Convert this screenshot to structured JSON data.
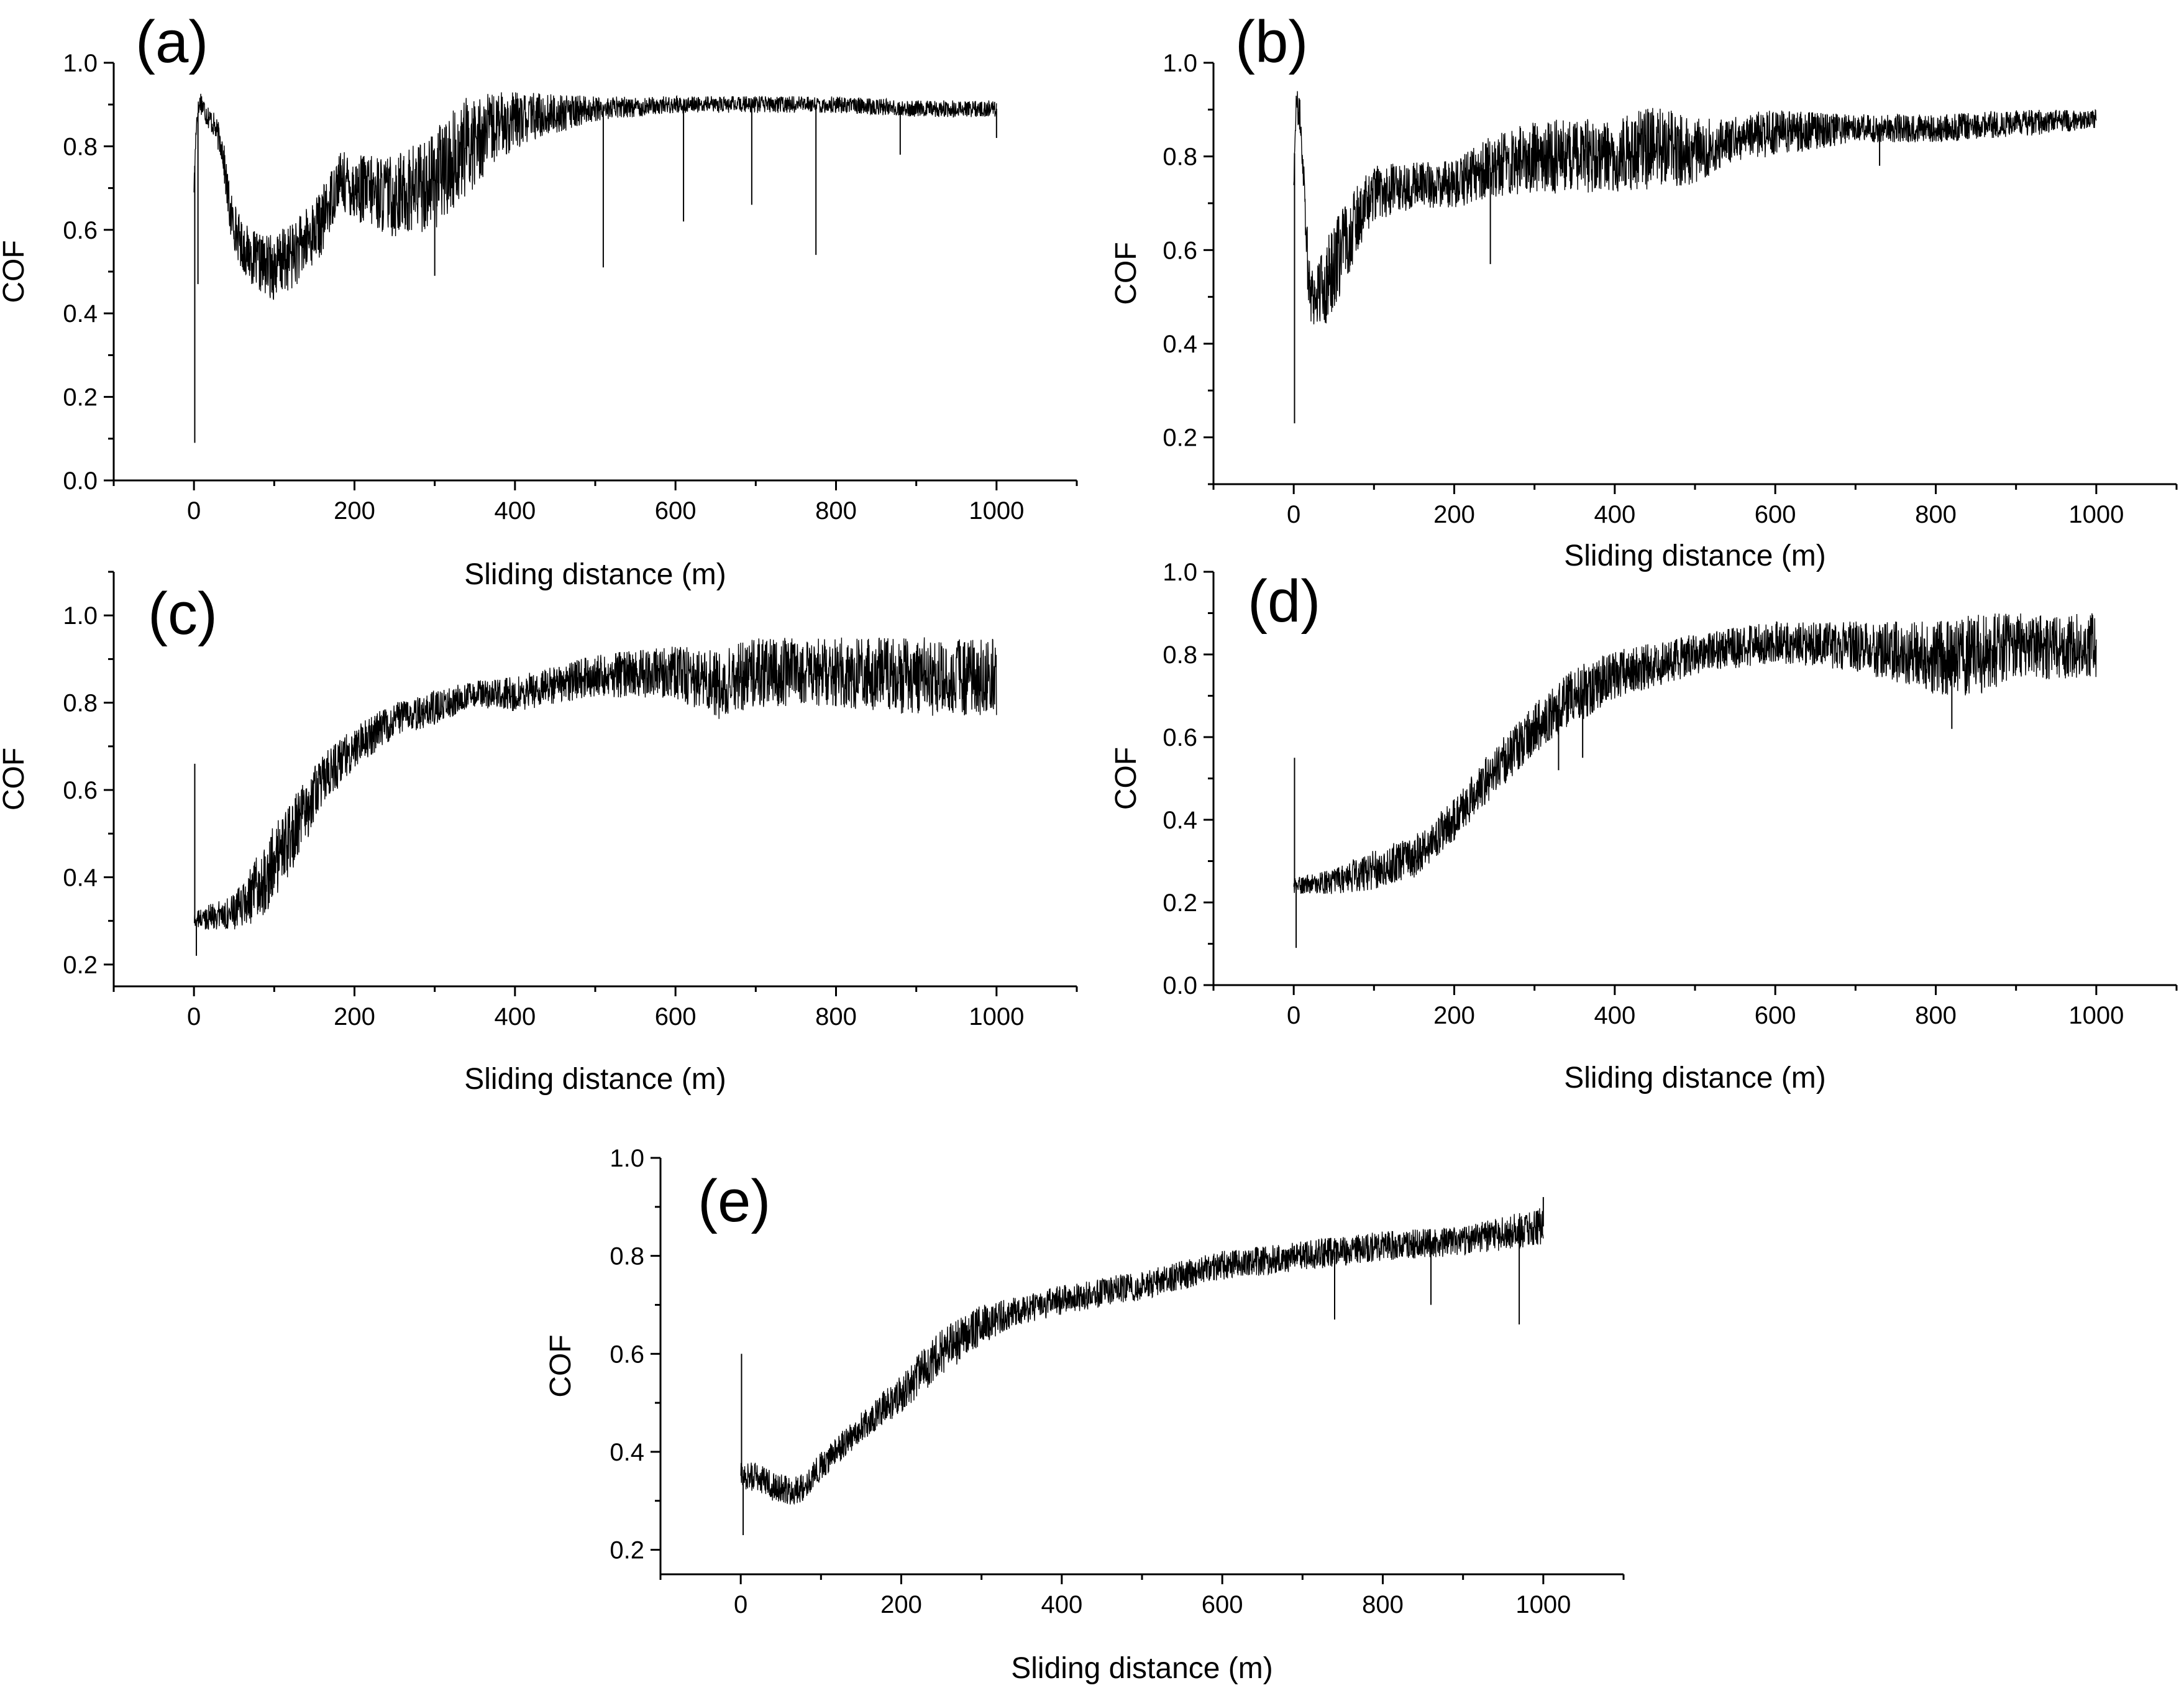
{
  "chart_data": [
    {
      "panel": "(a)",
      "type": "line",
      "xlabel": "Sliding distance (m)",
      "ylabel": "COF",
      "xlim": [
        -100,
        1100
      ],
      "ylim": [
        0.0,
        1.0
      ],
      "xticks": [
        0,
        200,
        400,
        600,
        800,
        1000
      ],
      "yticks": [
        0.0,
        0.2,
        0.4,
        0.6,
        0.8,
        1.0
      ],
      "ytick_labels": [
        "0.0",
        "0.2",
        "0.4",
        "0.6",
        "0.8",
        "1.0"
      ],
      "series": [
        {
          "name": "COF",
          "x": [
            0,
            3,
            8,
            15,
            25,
            35,
            45,
            60,
            80,
            100,
            130,
            160,
            180,
            200,
            250,
            300,
            340,
            380,
            420,
            500,
            600,
            700,
            800,
            900,
            1000
          ],
          "y": [
            0.7,
            0.86,
            0.91,
            0.88,
            0.85,
            0.8,
            0.64,
            0.56,
            0.52,
            0.51,
            0.55,
            0.62,
            0.72,
            0.7,
            0.68,
            0.72,
            0.8,
            0.85,
            0.87,
            0.89,
            0.9,
            0.9,
            0.9,
            0.89,
            0.89
          ],
          "band": [
            0.02,
            0.03,
            0.03,
            0.03,
            0.03,
            0.04,
            0.06,
            0.06,
            0.07,
            0.08,
            0.08,
            0.08,
            0.07,
            0.08,
            0.1,
            0.12,
            0.12,
            0.08,
            0.06,
            0.03,
            0.02,
            0.02,
            0.02,
            0.02,
            0.02
          ],
          "spikes": [
            [
              1,
              0.09
            ],
            [
              5,
              0.47
            ],
            [
              300,
              0.49
            ],
            [
              510,
              0.51
            ],
            [
              610,
              0.62
            ],
            [
              695,
              0.66
            ],
            [
              775,
              0.54
            ],
            [
              880,
              0.78
            ],
            [
              1000,
              0.82
            ]
          ]
        }
      ]
    },
    {
      "panel": "(b)",
      "type": "line",
      "xlabel": "Sliding distance (m)",
      "ylabel": "COF",
      "xlim": [
        -100,
        1100
      ],
      "ylim": [
        0.1,
        1.0
      ],
      "xticks": [
        0,
        200,
        400,
        600,
        800,
        1000
      ],
      "yticks": [
        0.2,
        0.4,
        0.6,
        0.8,
        1.0
      ],
      "ytick_labels": [
        "0.2",
        "0.4",
        "0.6",
        "0.8",
        "1.0"
      ],
      "series": [
        {
          "name": "COF",
          "x": [
            0,
            3,
            8,
            13,
            18,
            25,
            40,
            60,
            80,
            100,
            150,
            200,
            250,
            300,
            400,
            450,
            500,
            550,
            600,
            700,
            800,
            900,
            1000
          ],
          "y": [
            0.75,
            0.92,
            0.88,
            0.75,
            0.55,
            0.5,
            0.53,
            0.6,
            0.67,
            0.72,
            0.74,
            0.74,
            0.78,
            0.8,
            0.8,
            0.82,
            0.81,
            0.84,
            0.85,
            0.86,
            0.86,
            0.87,
            0.88
          ],
          "band": [
            0.03,
            0.03,
            0.04,
            0.05,
            0.08,
            0.08,
            0.09,
            0.09,
            0.07,
            0.06,
            0.05,
            0.05,
            0.07,
            0.08,
            0.08,
            0.09,
            0.07,
            0.05,
            0.05,
            0.03,
            0.03,
            0.03,
            0.02
          ],
          "spikes": [
            [
              1,
              0.23
            ],
            [
              245,
              0.57
            ],
            [
              730,
              0.78
            ]
          ]
        }
      ]
    },
    {
      "panel": "(c)",
      "type": "line",
      "xlabel": "Sliding distance (m)",
      "ylabel": "COF",
      "xlim": [
        -100,
        1100
      ],
      "ylim": [
        0.15,
        1.1
      ],
      "xticks": [
        0,
        200,
        400,
        600,
        800,
        1000
      ],
      "yticks": [
        0.2,
        0.4,
        0.6,
        0.8,
        1.0
      ],
      "ytick_labels": [
        "0.2",
        "0.4",
        "0.6",
        "0.8",
        "1.0"
      ],
      "series": [
        {
          "name": "COF",
          "x": [
            0,
            20,
            50,
            70,
            100,
            130,
            160,
            200,
            250,
            300,
            350,
            400,
            500,
            600,
            650,
            700,
            800,
            900,
            1000
          ],
          "y": [
            0.3,
            0.31,
            0.32,
            0.35,
            0.43,
            0.52,
            0.62,
            0.7,
            0.76,
            0.79,
            0.82,
            0.82,
            0.86,
            0.87,
            0.84,
            0.87,
            0.87,
            0.86,
            0.86
          ],
          "band": [
            0.02,
            0.03,
            0.04,
            0.07,
            0.09,
            0.08,
            0.06,
            0.05,
            0.04,
            0.04,
            0.03,
            0.04,
            0.05,
            0.06,
            0.08,
            0.08,
            0.08,
            0.09,
            0.09
          ],
          "spikes": [
            [
              1,
              0.66
            ],
            [
              3,
              0.22
            ]
          ]
        }
      ]
    },
    {
      "panel": "(d)",
      "type": "line",
      "xlabel": "Sliding distance (m)",
      "ylabel": "COF",
      "xlim": [
        -100,
        1100
      ],
      "ylim": [
        0.0,
        1.0
      ],
      "xticks": [
        0,
        200,
        400,
        600,
        800,
        1000
      ],
      "yticks": [
        0.0,
        0.2,
        0.4,
        0.6,
        0.8,
        1.0
      ],
      "ytick_labels": [
        "0.0",
        "0.2",
        "0.4",
        "0.6",
        "0.8",
        "1.0"
      ],
      "series": [
        {
          "name": "COF",
          "x": [
            0,
            50,
            100,
            150,
            200,
            250,
            300,
            350,
            400,
            500,
            600,
            700,
            800,
            850,
            900,
            1000
          ],
          "y": [
            0.24,
            0.25,
            0.28,
            0.31,
            0.4,
            0.52,
            0.62,
            0.7,
            0.75,
            0.8,
            0.83,
            0.82,
            0.79,
            0.8,
            0.82,
            0.82
          ],
          "band": [
            0.02,
            0.03,
            0.05,
            0.05,
            0.05,
            0.06,
            0.06,
            0.07,
            0.06,
            0.05,
            0.05,
            0.06,
            0.09,
            0.1,
            0.08,
            0.08
          ],
          "spikes": [
            [
              1,
              0.55
            ],
            [
              3,
              0.09
            ],
            [
              330,
              0.52
            ],
            [
              360,
              0.55
            ],
            [
              820,
              0.62
            ]
          ]
        }
      ]
    },
    {
      "panel": "(e)",
      "type": "line",
      "xlabel": "Sliding distance (m)",
      "ylabel": "COF",
      "xlim": [
        -100,
        1100
      ],
      "ylim": [
        0.15,
        1.0
      ],
      "xticks": [
        0,
        200,
        400,
        600,
        800,
        1000
      ],
      "yticks": [
        0.2,
        0.4,
        0.6,
        0.8,
        1.0
      ],
      "ytick_labels": [
        "0.2",
        "0.4",
        "0.6",
        "0.8",
        "1.0"
      ],
      "series": [
        {
          "name": "COF",
          "x": [
            0,
            20,
            40,
            60,
            80,
            100,
            150,
            200,
            250,
            300,
            350,
            400,
            500,
            600,
            700,
            800,
            900,
            1000
          ],
          "y": [
            0.35,
            0.35,
            0.33,
            0.32,
            0.33,
            0.37,
            0.45,
            0.52,
            0.6,
            0.66,
            0.69,
            0.71,
            0.74,
            0.78,
            0.8,
            0.82,
            0.83,
            0.86
          ],
          "band": [
            0.03,
            0.03,
            0.03,
            0.03,
            0.03,
            0.03,
            0.03,
            0.04,
            0.05,
            0.04,
            0.03,
            0.03,
            0.03,
            0.03,
            0.03,
            0.03,
            0.03,
            0.04
          ],
          "spikes": [
            [
              1,
              0.6
            ],
            [
              3,
              0.23
            ],
            [
              740,
              0.67
            ],
            [
              860,
              0.7
            ],
            [
              970,
              0.66
            ],
            [
              1000,
              0.92
            ]
          ]
        }
      ]
    }
  ]
}
